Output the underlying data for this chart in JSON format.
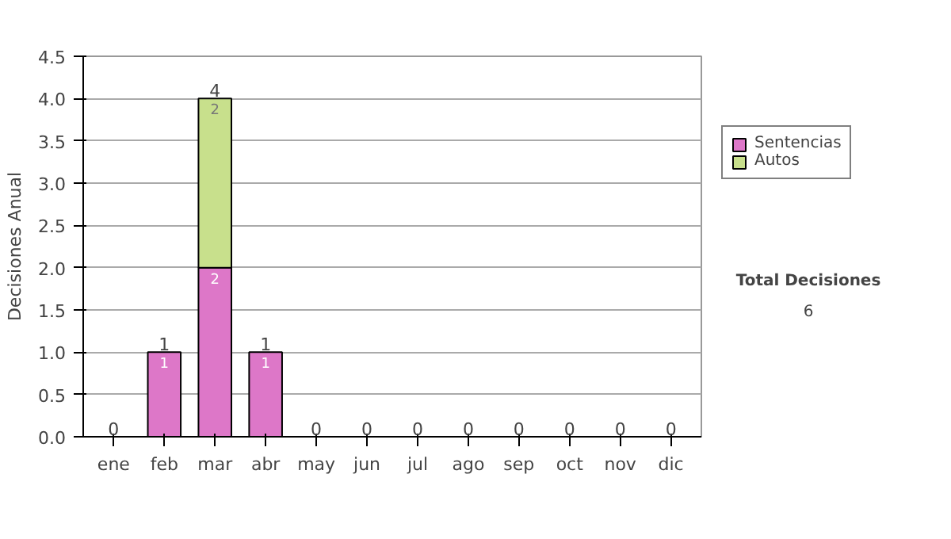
{
  "chart_data": {
    "type": "bar",
    "stacked": true,
    "ylabel": "Decisiones Anual",
    "categories": [
      "ene",
      "feb",
      "mar",
      "abr",
      "may",
      "jun",
      "jul",
      "ago",
      "sep",
      "oct",
      "nov",
      "dic"
    ],
    "series": [
      {
        "name": "Sentencias",
        "color": "#dd77c8",
        "values": [
          0,
          1,
          2,
          1,
          0,
          0,
          0,
          0,
          0,
          0,
          0,
          0
        ],
        "value_labels": [
          null,
          "1",
          "2",
          "1",
          null,
          null,
          null,
          null,
          null,
          null,
          null,
          null
        ]
      },
      {
        "name": "Autos",
        "color": "#c8e08c",
        "values": [
          0,
          0,
          2,
          0,
          0,
          0,
          0,
          0,
          0,
          0,
          0,
          0
        ],
        "value_labels": [
          null,
          null,
          "2",
          null,
          null,
          null,
          null,
          null,
          null,
          null,
          null,
          null
        ]
      }
    ],
    "totals": [
      "0",
      "1",
      "4",
      "1",
      "0",
      "0",
      "0",
      "0",
      "0",
      "0",
      "0",
      "0"
    ],
    "ylim": [
      0,
      4.5
    ],
    "yticks": [
      {
        "value": 0,
        "label": "0.0"
      },
      {
        "value": 0.5,
        "label": "0.5"
      },
      {
        "value": 1,
        "label": "1.0"
      },
      {
        "value": 1.5,
        "label": "1.5"
      },
      {
        "value": 2,
        "label": "2.0"
      },
      {
        "value": 2.5,
        "label": "2.5"
      },
      {
        "value": 3,
        "label": "3.0"
      },
      {
        "value": 3.5,
        "label": "3.5"
      },
      {
        "value": 4,
        "label": "4.0"
      },
      {
        "value": 4.5,
        "label": "4.5"
      }
    ],
    "grid": "y",
    "legend": "right",
    "annotations": [
      "Total Decisiones",
      "6"
    ]
  }
}
